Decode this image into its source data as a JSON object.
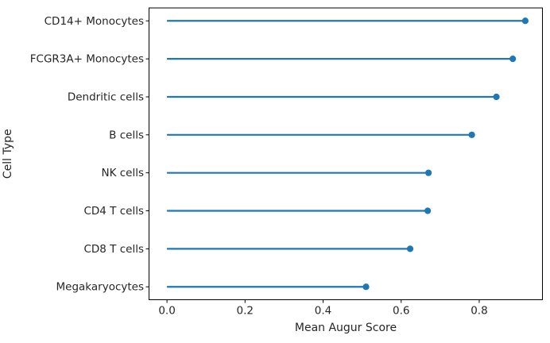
{
  "figure": {
    "background_color": "#ffffff"
  },
  "chart_data": {
    "type": "lollipop",
    "orientation": "horizontal",
    "title": "",
    "xlabel": "Mean Augur Score",
    "ylabel": "Cell Type",
    "categories": [
      "CD14+ Monocytes",
      "FCGR3A+ Monocytes",
      "Dendritic cells",
      "B cells",
      "NK cells",
      "CD4 T cells",
      "CD8 T cells",
      "Megakaryocytes"
    ],
    "values": [
      0.918,
      0.886,
      0.844,
      0.781,
      0.67,
      0.668,
      0.623,
      0.51
    ],
    "stem_start": 0.0,
    "xticks": [
      0.0,
      0.2,
      0.4,
      0.6,
      0.8
    ],
    "xtick_labels": [
      "0.0",
      "0.2",
      "0.4",
      "0.6",
      "0.8"
    ],
    "xlim": [
      -0.046,
      0.962
    ],
    "grid": false,
    "legend": "none",
    "box_spines": true,
    "accent_color": "#1f77b4",
    "text_color": "#262626",
    "spine_color": "#000000"
  }
}
